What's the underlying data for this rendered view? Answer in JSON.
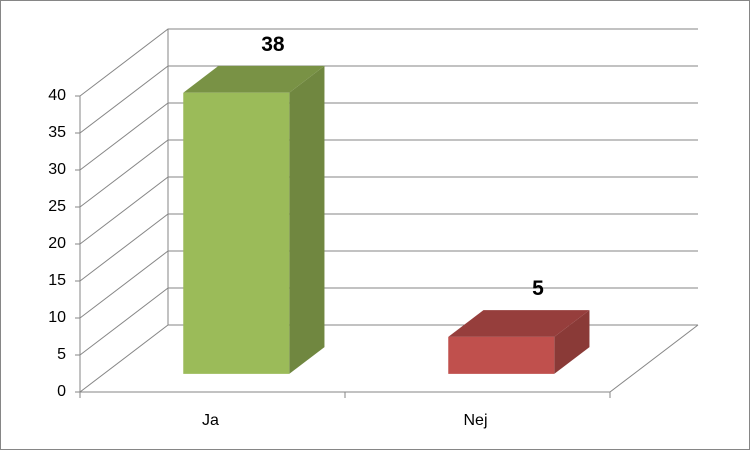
{
  "chart_data": {
    "type": "bar3d",
    "categories": [
      "Ja",
      "Nej"
    ],
    "values": [
      38,
      5
    ],
    "colors": [
      "#9BBB59",
      "#C0504D"
    ],
    "ylim": [
      0,
      40
    ],
    "yticks": [
      0,
      5,
      10,
      15,
      20,
      25,
      30,
      35,
      40
    ],
    "grid": true
  }
}
